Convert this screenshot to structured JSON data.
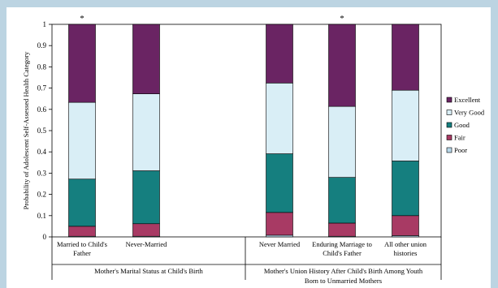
{
  "chart_data": {
    "type": "bar",
    "stacked": true,
    "ylabel": "Probability of Adolescent Self-Assessed Health Category",
    "ylim": [
      0,
      1
    ],
    "yticks": [
      "0",
      "0.1",
      "0.2",
      "0.3",
      "0.4",
      "0.5",
      "0.6",
      "0.7",
      "0.8",
      "0.9",
      "1"
    ],
    "categories": [
      {
        "label_lines": [
          "Married to Child's",
          "Father"
        ],
        "star": "*"
      },
      {
        "label_lines": [
          "Never-Married"
        ],
        "star": ""
      },
      {
        "label_lines": [
          "Never Married"
        ],
        "star": ""
      },
      {
        "label_lines": [
          "Enduring Marriage to",
          "Child's Father"
        ],
        "star": "*"
      },
      {
        "label_lines": [
          "All other union",
          "histories"
        ],
        "star": ""
      }
    ],
    "groups": [
      {
        "label_lines": [
          "Mother's Marital Status at Child's Birth"
        ]
      },
      {
        "label_lines": [
          "Mother's Union History After Child's Birth Among Youth",
          "Born to Unmarried Mothers"
        ]
      }
    ],
    "series": [
      {
        "name": "Poor",
        "color": "#b8d8ea",
        "values": [
          0.003,
          0.003,
          0.008,
          0.003,
          0.006
        ]
      },
      {
        "name": "Fair",
        "color": "#a83a64",
        "values": [
          0.047,
          0.059,
          0.107,
          0.062,
          0.094
        ]
      },
      {
        "name": "Good",
        "color": "#157f7f",
        "values": [
          0.222,
          0.249,
          0.276,
          0.215,
          0.257
        ]
      },
      {
        "name": "Very Good",
        "color": "#d9eef6",
        "values": [
          0.361,
          0.362,
          0.333,
          0.334,
          0.333
        ]
      },
      {
        "name": "Excellent",
        "color": "#6a2463",
        "values": [
          0.367,
          0.327,
          0.276,
          0.386,
          0.31
        ]
      }
    ],
    "legend_order": [
      "Excellent",
      "Very Good",
      "Good",
      "Fair",
      "Poor"
    ],
    "legend_position": "right",
    "grid": false
  }
}
